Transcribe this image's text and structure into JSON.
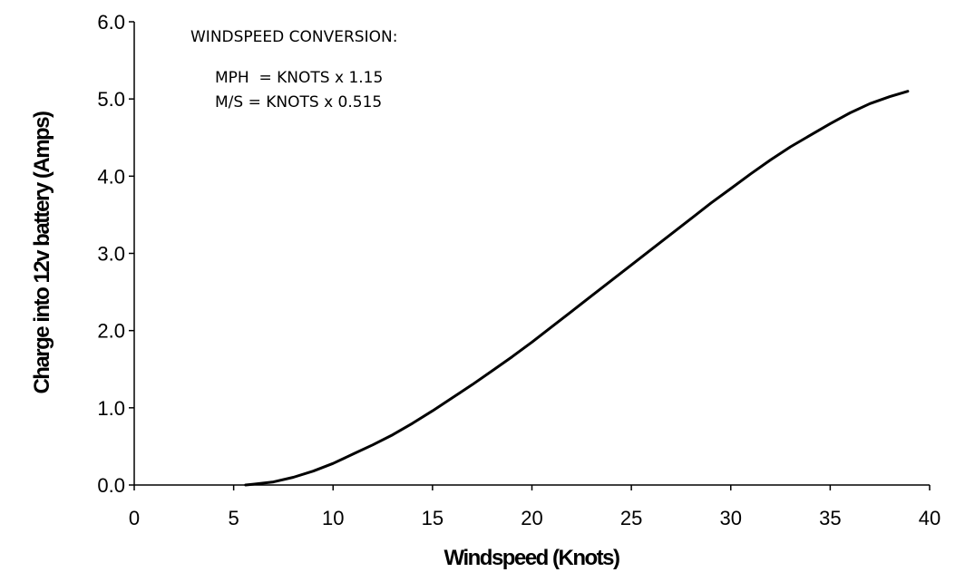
{
  "chart_data": {
    "type": "line",
    "title": "",
    "xlabel": "Windspeed (Knots)",
    "ylabel": "Charge into 12v battery (Amps)",
    "xlim": [
      0,
      40
    ],
    "ylim": [
      0,
      6
    ],
    "xticks": [
      0,
      5,
      10,
      15,
      20,
      25,
      30,
      35,
      40
    ],
    "yticks": [
      "0.0",
      "1.0",
      "2.0",
      "3.0",
      "4.0",
      "5.0",
      "6.0"
    ],
    "grid": false,
    "legend": "none",
    "line_color": "#000000",
    "series": [
      {
        "x": [
          5.6,
          6,
          7,
          8,
          9,
          10,
          11,
          12,
          13,
          14,
          15,
          16,
          17,
          18,
          19,
          20,
          21,
          22,
          23,
          24,
          25,
          26,
          27,
          28,
          29,
          30,
          31,
          32,
          33,
          34,
          35,
          36,
          37,
          38,
          38.9
        ],
        "values": [
          0.0,
          0.01,
          0.04,
          0.1,
          0.18,
          0.28,
          0.4,
          0.52,
          0.65,
          0.8,
          0.96,
          1.13,
          1.3,
          1.48,
          1.66,
          1.85,
          2.05,
          2.25,
          2.45,
          2.65,
          2.85,
          3.05,
          3.25,
          3.45,
          3.65,
          3.84,
          4.03,
          4.21,
          4.38,
          4.53,
          4.68,
          4.82,
          4.94,
          5.03,
          5.1
        ]
      }
    ],
    "annotations": {
      "heading": "WINDSPEED CONVERSION:",
      "line1": "MPH  = KNOTS x 1.15",
      "line2": "M/S = KNOTS x 0.515"
    }
  }
}
